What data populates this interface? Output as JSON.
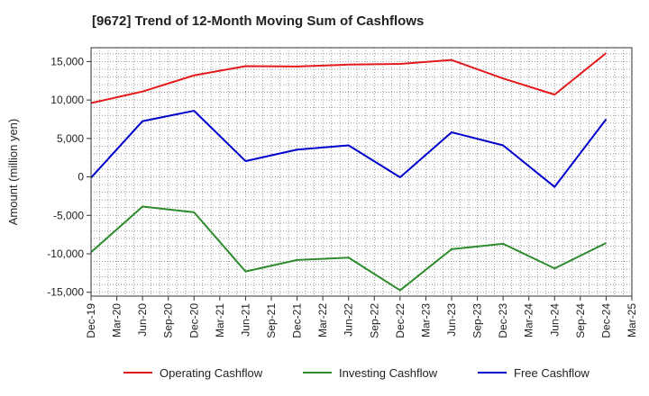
{
  "chart_data": {
    "type": "line",
    "title": "[9672]  Trend of 12-Month Moving Sum of Cashflows",
    "xlabel": "",
    "ylabel": "Amount (million yen)",
    "x_ticks": [
      "Dec-19",
      "Mar-20",
      "Jun-20",
      "Sep-20",
      "Dec-20",
      "Mar-21",
      "Jun-21",
      "Sep-21",
      "Dec-21",
      "Mar-22",
      "Jun-22",
      "Sep-22",
      "Dec-22",
      "Mar-23",
      "Jun-23",
      "Sep-23",
      "Dec-23",
      "Mar-24",
      "Jun-24",
      "Sep-24",
      "Dec-24",
      "Mar-25"
    ],
    "y_ticks": [
      15000,
      10000,
      5000,
      0,
      -5000,
      -10000,
      -15000
    ],
    "y_tick_labels": [
      "15,000",
      "10,000",
      "5,000",
      "0",
      "-5,000",
      "-10,000",
      "-15,000"
    ],
    "ylim": [
      -15500,
      16800
    ],
    "grid": true,
    "legend_position": "bottom",
    "x": [
      "Dec-19",
      "Jun-20",
      "Dec-20",
      "Jun-21",
      "Dec-21",
      "Jun-22",
      "Dec-22",
      "Jun-23",
      "Dec-23",
      "Jun-24",
      "Dec-24"
    ],
    "series": [
      {
        "name": "Operating Cashflow",
        "color": "#e31a1c",
        "values": [
          9600,
          11100,
          13200,
          14400,
          14350,
          14600,
          14700,
          15200,
          12800,
          10700,
          16100
        ]
      },
      {
        "name": "Investing Cashflow",
        "color": "#2e8b2e",
        "values": [
          -9800,
          -3850,
          -4600,
          -12300,
          -10800,
          -10500,
          -14750,
          -9400,
          -8700,
          -11900,
          -8600
        ]
      },
      {
        "name": "Free Cashflow",
        "color": "#0000cc",
        "values": [
          -100,
          7250,
          8600,
          2050,
          3550,
          4100,
          -50,
          5800,
          4100,
          -1300,
          7500
        ]
      }
    ]
  }
}
